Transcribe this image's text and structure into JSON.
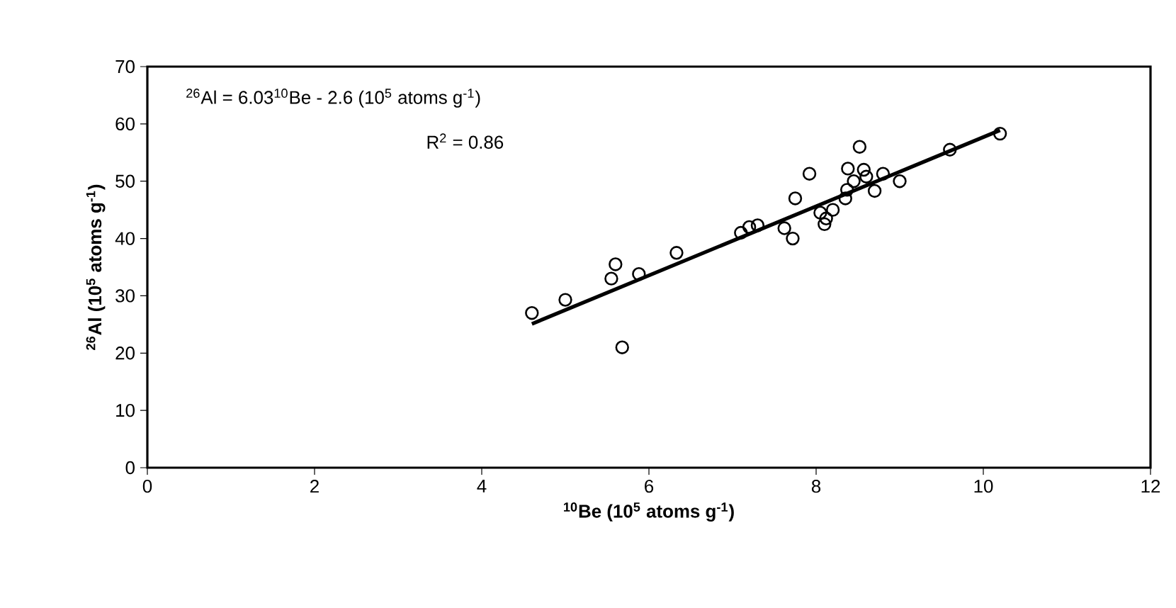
{
  "chart_data": {
    "type": "scatter",
    "xlabel": "$^{10}$Be (10$^{5}$ atoms g$^{-1}$)",
    "ylabel": "$^{26}$Al (10$^{5}$ atoms g$^{-1}$)",
    "annotations": [
      "$^{26}$Al = 6.03$^{10}$Be - 2.6 (10$^{5}$ atoms g$^{-1}$)",
      "R$^{2}$ = 0.86"
    ],
    "xlim": [
      0,
      12
    ],
    "xticks": [
      0,
      2,
      4,
      6,
      8,
      10,
      12
    ],
    "ylim": [
      0,
      70
    ],
    "yticks": [
      0,
      10,
      20,
      30,
      40,
      50,
      60,
      70
    ],
    "grid": false,
    "marker": "circle",
    "series": [
      {
        "color": "#000000",
        "x": [
          4.6,
          5.0,
          5.55,
          5.6,
          5.68,
          5.88,
          6.33,
          7.1,
          7.2,
          7.3,
          7.62,
          7.72,
          7.75,
          7.92,
          8.05,
          8.1,
          8.12,
          8.2,
          8.35,
          8.37,
          8.38,
          8.45,
          8.52,
          8.57,
          8.6,
          8.7,
          8.8,
          9.0,
          9.6,
          10.2
        ],
        "values": [
          27,
          29.3,
          33,
          35.5,
          21,
          33.8,
          37.5,
          41,
          42,
          42.3,
          41.8,
          40,
          47,
          51.3,
          44.5,
          42.5,
          43.5,
          45,
          47,
          48.5,
          52.2,
          50,
          56,
          52,
          50.8,
          48.3,
          51.3,
          50,
          55.5,
          58.3
        ]
      },
      {
        "type": "line",
        "color": "#000000",
        "marker": "none",
        "line_style": "solid",
        "x": [
          4.6,
          10.2
        ],
        "values": [
          25.1,
          58.9
        ]
      }
    ]
  }
}
